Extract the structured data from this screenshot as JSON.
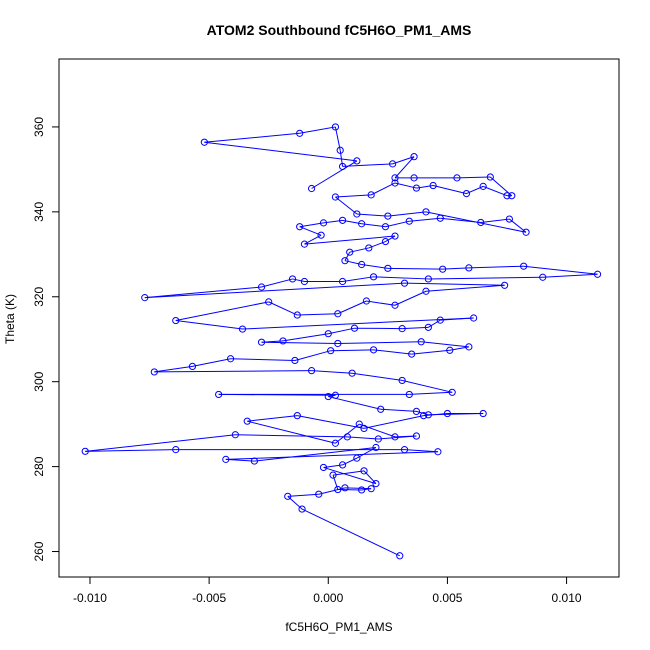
{
  "chart_data": {
    "type": "line",
    "title": "ATOM2 Southbound fC5H6O_PM1_AMS",
    "xlabel": "fC5H6O_PM1_AMS",
    "ylabel": "Theta (K)",
    "xlim": [
      -0.0113,
      0.0122
    ],
    "ylim": [
      254,
      376
    ],
    "x_ticks": [
      -0.01,
      -0.005,
      0.0,
      0.005,
      0.01
    ],
    "x_tick_labels": [
      "-0.010",
      "-0.005",
      "0.000",
      "0.005",
      "0.010"
    ],
    "y_ticks": [
      260,
      280,
      300,
      320,
      340,
      360
    ],
    "y_tick_labels": [
      "260",
      "280",
      "300",
      "320",
      "340",
      "360"
    ],
    "grid": false,
    "markers": "open-circle",
    "series_color": "#0000ff",
    "series": [
      {
        "points": [
          [
            0.003,
            259.0
          ],
          [
            -0.0011,
            270.0
          ],
          [
            -0.0017,
            273.0
          ],
          [
            -0.0004,
            273.5
          ],
          [
            0.0007,
            275.0
          ],
          [
            0.0018,
            274.8
          ],
          [
            0.0014,
            274.5
          ],
          [
            0.0004,
            274.6
          ],
          [
            0.0002,
            278.0
          ],
          [
            0.0015,
            279.0
          ],
          [
            0.002,
            276.0
          ],
          [
            -0.0002,
            279.8
          ],
          [
            0.0006,
            280.4
          ],
          [
            0.0012,
            282.0
          ],
          [
            0.002,
            284.5
          ],
          [
            -0.0031,
            281.3
          ],
          [
            -0.0043,
            281.7
          ],
          [
            0.0046,
            283.5
          ],
          [
            0.0032,
            284.0
          ],
          [
            -0.0064,
            284.0
          ],
          [
            -0.0102,
            283.6
          ],
          [
            -0.0039,
            287.5
          ],
          [
            0.0008,
            287.0
          ],
          [
            0.0021,
            286.5
          ],
          [
            0.0037,
            287.2
          ],
          [
            0.0028,
            287.0
          ],
          [
            0.0013,
            290.0
          ],
          [
            0.0003,
            285.5
          ],
          [
            -0.0034,
            290.7
          ],
          [
            -0.0013,
            292.0
          ],
          [
            0.0015,
            289.0
          ],
          [
            0.004,
            292.0
          ],
          [
            0.005,
            292.5
          ],
          [
            0.0065,
            292.5
          ],
          [
            0.0042,
            292.2
          ],
          [
            0.0037,
            293.0
          ],
          [
            0.0022,
            293.5
          ],
          [
            0.0,
            296.5
          ],
          [
            0.0003,
            296.8
          ],
          [
            -0.0046,
            297.0
          ],
          [
            0.0034,
            297.0
          ],
          [
            0.0052,
            297.5
          ],
          [
            0.0031,
            300.3
          ],
          [
            0.001,
            302.0
          ],
          [
            -0.0007,
            302.6
          ],
          [
            -0.0073,
            302.3
          ],
          [
            -0.0057,
            303.6
          ],
          [
            -0.0041,
            305.4
          ],
          [
            -0.0014,
            305.0
          ],
          [
            0.0001,
            307.3
          ],
          [
            0.0019,
            307.5
          ],
          [
            0.0035,
            306.5
          ],
          [
            0.0051,
            307.4
          ],
          [
            0.0059,
            308.2
          ],
          [
            0.0039,
            309.4
          ],
          [
            0.0004,
            309.0
          ],
          [
            -0.0028,
            309.3
          ],
          [
            -0.0019,
            309.6
          ],
          [
            0.0,
            311.3
          ],
          [
            0.0011,
            312.6
          ],
          [
            0.0031,
            312.5
          ],
          [
            0.0042,
            312.8
          ],
          [
            0.0047,
            314.5
          ],
          [
            0.0061,
            315.0
          ],
          [
            -0.0036,
            312.4
          ],
          [
            -0.0064,
            314.4
          ],
          [
            -0.0025,
            318.8
          ],
          [
            -0.0013,
            315.7
          ],
          [
            0.0004,
            316.0
          ],
          [
            0.0016,
            319.0
          ],
          [
            0.0028,
            318.0
          ],
          [
            0.0041,
            321.3
          ],
          [
            0.0074,
            322.7
          ],
          [
            0.0032,
            323.2
          ],
          [
            -0.0077,
            319.8
          ],
          [
            -0.0028,
            322.3
          ],
          [
            -0.0015,
            324.2
          ],
          [
            -0.001,
            323.6
          ],
          [
            0.0006,
            323.6
          ],
          [
            0.0019,
            324.7
          ],
          [
            0.0042,
            324.2
          ],
          [
            0.009,
            324.6
          ],
          [
            0.0113,
            325.3
          ],
          [
            0.0082,
            327.2
          ],
          [
            0.0059,
            326.8
          ],
          [
            0.0048,
            326.5
          ],
          [
            0.0025,
            326.7
          ],
          [
            0.0014,
            327.6
          ],
          [
            0.0007,
            328.5
          ],
          [
            0.0009,
            330.5
          ],
          [
            0.0017,
            331.5
          ],
          [
            0.0024,
            333.0
          ],
          [
            0.0028,
            334.3
          ],
          [
            -0.001,
            332.4
          ],
          [
            -0.0003,
            334.5
          ],
          [
            -0.0012,
            336.5
          ],
          [
            -0.0002,
            337.4
          ],
          [
            0.0006,
            338.0
          ],
          [
            0.0014,
            337.2
          ],
          [
            0.0024,
            336.5
          ],
          [
            0.0034,
            337.8
          ],
          [
            0.0047,
            338.5
          ],
          [
            0.0064,
            337.5
          ],
          [
            0.0076,
            338.3
          ],
          [
            0.0083,
            335.2
          ],
          [
            0.0041,
            340.0
          ],
          [
            0.0025,
            339.0
          ],
          [
            0.0012,
            339.5
          ],
          [
            0.0003,
            343.5
          ],
          [
            0.0018,
            344.0
          ],
          [
            0.0028,
            346.8
          ],
          [
            0.0037,
            345.6
          ],
          [
            0.0044,
            346.2
          ],
          [
            0.0058,
            344.3
          ],
          [
            0.0065,
            346.0
          ],
          [
            0.0075,
            343.8
          ],
          [
            0.0077,
            343.8
          ],
          [
            0.0068,
            348.2
          ],
          [
            0.0054,
            348.0
          ],
          [
            0.0036,
            348.0
          ],
          [
            0.0028,
            348.0
          ],
          [
            0.0036,
            353.0
          ],
          [
            0.0027,
            351.3
          ],
          [
            0.0006,
            350.7
          ],
          [
            0.0005,
            354.5
          ],
          [
            0.0003,
            360.0
          ],
          [
            -0.0012,
            358.5
          ],
          [
            -0.0052,
            356.4
          ],
          [
            0.0012,
            352.0
          ],
          [
            -0.0007,
            345.5
          ]
        ]
      }
    ]
  }
}
